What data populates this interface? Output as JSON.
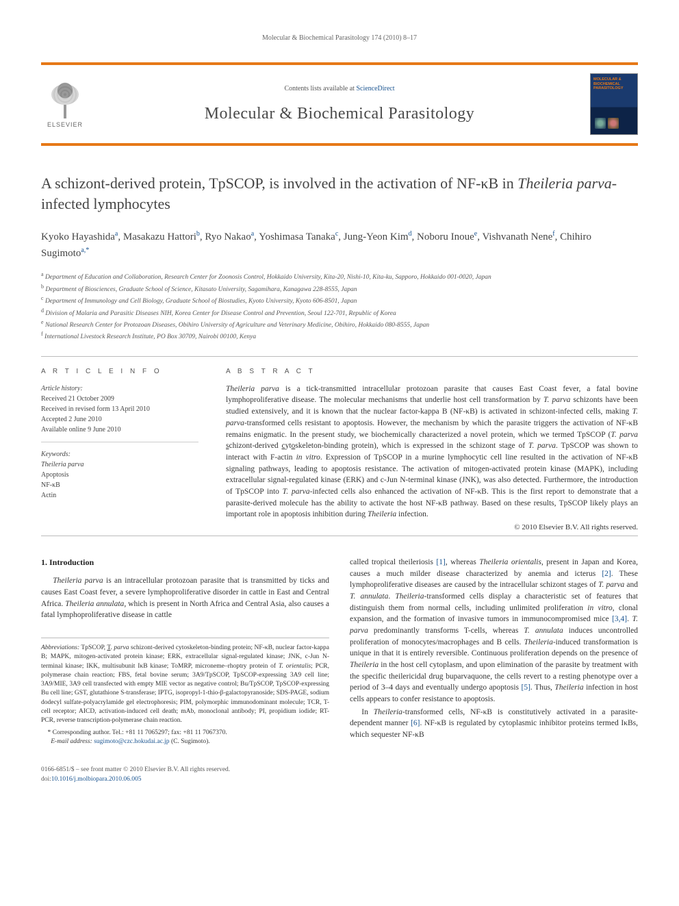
{
  "running_head": "Molecular & Biochemical Parasitology 174 (2010) 8–17",
  "header": {
    "contents_prefix": "Contents lists available at ",
    "contents_link": "ScienceDirect",
    "journal_name": "Molecular & Biochemical Parasitology",
    "publisher_name": "ELSEVIER",
    "cover_title": "MOLECULAR & BIOCHEMICAL PARASITOLOGY"
  },
  "title_parts": {
    "p1": "A schizont-derived protein, TpSCOP, is involved in the activation of NF-κB in ",
    "p2_italic": "Theileria parva",
    "p3": "-infected lymphocytes"
  },
  "authors_html": "Kyoko Hayashida<sup>a</sup>, Masakazu Hattori<sup>b</sup>, Ryo Nakao<sup>a</sup>, Yoshimasa Tanaka<sup>c</sup>, Jung-Yeon Kim<sup>d</sup>, Noboru Inoue<sup>e</sup>, Vishvanath Nene<sup>f</sup>, Chihiro Sugimoto<sup>a,</sup>",
  "corr_mark": "*",
  "affiliations": [
    {
      "sup": "a",
      "text": "Department of Education and Collaboration, Research Center for Zoonosis Control, Hokkaido University, Kita-20, Nishi-10, Kita-ku, Sapporo, Hokkaido 001-0020, Japan"
    },
    {
      "sup": "b",
      "text": "Department of Biosciences, Graduate School of Science, Kitasato University, Sagamihara, Kanagawa 228-8555, Japan"
    },
    {
      "sup": "c",
      "text": "Department of Immunology and Cell Biology, Graduate School of Biostudies, Kyoto University, Kyoto 606-8501, Japan"
    },
    {
      "sup": "d",
      "text": "Division of Malaria and Parasitic Diseases NIH, Korea Center for Disease Control and Prevention, Seoul 122-701, Republic of Korea"
    },
    {
      "sup": "e",
      "text": "National Research Center for Protozoan Diseases, Obihiro University of Agriculture and Veterinary Medicine, Obihiro, Hokkaido 080-8555, Japan"
    },
    {
      "sup": "f",
      "text": "International Livestock Research Institute, PO Box 30709, Nairobi 00100, Kenya"
    }
  ],
  "info": {
    "heading": "A R T I C L E   I N F O",
    "history_label": "Article history:",
    "history": [
      "Received 21 October 2009",
      "Received in revised form 13 April 2010",
      "Accepted 2 June 2010",
      "Available online 9 June 2010"
    ],
    "kw_label": "Keywords:",
    "keywords": [
      "Theileria parva",
      "Apoptosis",
      "NF-κB",
      "Actin"
    ]
  },
  "abstract": {
    "heading": "A B S T R A C T",
    "text_html": "<i>Theileria parva</i> is a tick-transmitted intracellular protozoan parasite that causes East Coast fever, a fatal bovine lymphoproliferative disease. The molecular mechanisms that underlie host cell transformation by <i>T. parva</i> schizonts have been studied extensively, and it is known that the nuclear factor-kappa B (NF-κB) is activated in schizont-infected cells, making <i>T. parva</i>-transformed cells resistant to apoptosis. However, the mechanism by which the parasite triggers the activation of NF-κB remains enigmatic. In the present study, we biochemically characterized a novel protein, which we termed TpSCOP (<i>T. parva</i> <u>s</u>chizont-derived <u>c</u>yt<u>o</u>skeleton-binding <u>p</u>rotein), which is expressed in the schizont stage of <i>T. parva</i>. TpSCOP was shown to interact with F-actin <i>in vitro</i>. Expression of TpSCOP in a murine lymphocytic cell line resulted in the activation of NF-κB signaling pathways, leading to apoptosis resistance. The activation of mitogen-activated protein kinase (MAPK), including extracellular signal-regulated kinase (ERK) and c-Jun N-terminal kinase (JNK), was also detected. Furthermore, the introduction of TpSCOP into <i>T. parva</i>-infected cells also enhanced the activation of NF-κB. This is the first report to demonstrate that a parasite-derived molecule has the ability to activate the host NF-κB pathway. Based on these results, TpSCOP likely plays an important role in apoptosis inhibition during <i>Theileria</i> infection.",
    "copyright": "© 2010 Elsevier B.V. All rights reserved."
  },
  "section1": {
    "heading": "1.  Introduction",
    "col1_html": "<i>Theileria parva</i> is an intracellular protozoan parasite that is transmitted by ticks and causes East Coast fever, a severe lymphoproliferative disorder in cattle in East and Central Africa. <i>Theileria annulata</i>, which is present in North Africa and Central Asia, also causes a fatal lymphoproliferative disease in cattle",
    "col2_p1_html": "called tropical theileriosis <a class='ref-link'>[1]</a>, whereas <i>Theileria orientalis</i>, present in Japan and Korea, causes a much milder disease characterized by anemia and icterus <a class='ref-link'>[2]</a>. These lymphoproliferative diseases are caused by the intracellular schizont stages of <i>T. parva</i> and <i>T. annulata</i>. <i>Theileria</i>-transformed cells display a characteristic set of features that distinguish them from normal cells, including unlimited proliferation <i>in vitro</i>, clonal expansion, and the formation of invasive tumors in immunocompromised mice <a class='ref-link'>[3,4]</a>. <i>T. parva</i> predominantly transforms T-cells, whereas <i>T. annulata</i> induces uncontrolled proliferation of monocytes/macrophages and B cells. <i>Theileria</i>-induced transformation is unique in that it is entirely reversible. Continuous proliferation depends on the presence of <i>Theileria</i> in the host cell cytoplasm, and upon elimination of the parasite by treatment with the specific theilericidal drug buparvaquone, the cells revert to a resting phenotype over a period of 3–4 days and eventually undergo apoptosis <a class='ref-link'>[5]</a>. Thus, <i>Theileria</i> infection in host cells appears to confer resistance to apoptosis.",
    "col2_p2_html": "In <i>Theileria</i>-transformed cells, NF-κB is constitutively activated in a parasite-dependent manner <a class='ref-link'>[6]</a>. NF-κB is regulated by cytoplasmic inhibitor proteins termed IκBs, which sequester NF-κB"
  },
  "footnotes": {
    "abbrev_label": "Abbreviations:",
    "abbrev_text_html": " TpSCOP, <u>T</u>. <i>parva</i> schizont-derived cytoskeleton-binding protein; NF-κB, nuclear factor-kappa B; MAPK, mitogen-activated protein kinase; ERK, extracellular signal-regulated kinase; JNK, c-Jun N-terminal kinase; IKK, multisubunit IκB kinase; ToMRP, microneme–rhoptry protein of <i>T. orientalis</i>; PCR, polymerase chain reaction; FBS, fetal bovine serum; 3A9/TpSCOP, TpSCOP-expressing 3A9 cell line; 3A9/MIE, 3A9 cell transfected with empty MIE vector as negative control; Bu/TpSCOP, TpSCOP-expressing Bu cell line; GST, glutathione S-transferase; IPTG, isopropyl-1-thio-β-galactopyranoside; SDS-PAGE, sodium dodecyl sulfate-polyacrylamide gel electrophoresis; PIM, polymorphic immunodominant molecule; TCR, T-cell receptor; AICD, activation-induced cell death; mAb, monoclonal antibody; PI, propidium iodide; RT-PCR, reverse transcription-polymerase chain reaction.",
    "corr_label": "* Corresponding author. ",
    "corr_text": "Tel.: +81 11 7065297; fax: +81 11 7067370.",
    "email_label": "E-mail address:",
    "email": "sugimoto@czc.hokudai.ac.jp",
    "email_suffix": " (C. Sugimoto)."
  },
  "footer": {
    "line1": "0166-6851/$ – see front matter © 2010 Elsevier B.V. All rights reserved.",
    "doi_prefix": "doi:",
    "doi": "10.1016/j.molbiopara.2010.06.005"
  },
  "colors": {
    "accent": "#e67817",
    "link": "#1a5490",
    "text": "#333333",
    "muted": "#666666",
    "cover_bg_top": "#1a3a6e",
    "cover_bg_bottom": "#0d2347"
  }
}
